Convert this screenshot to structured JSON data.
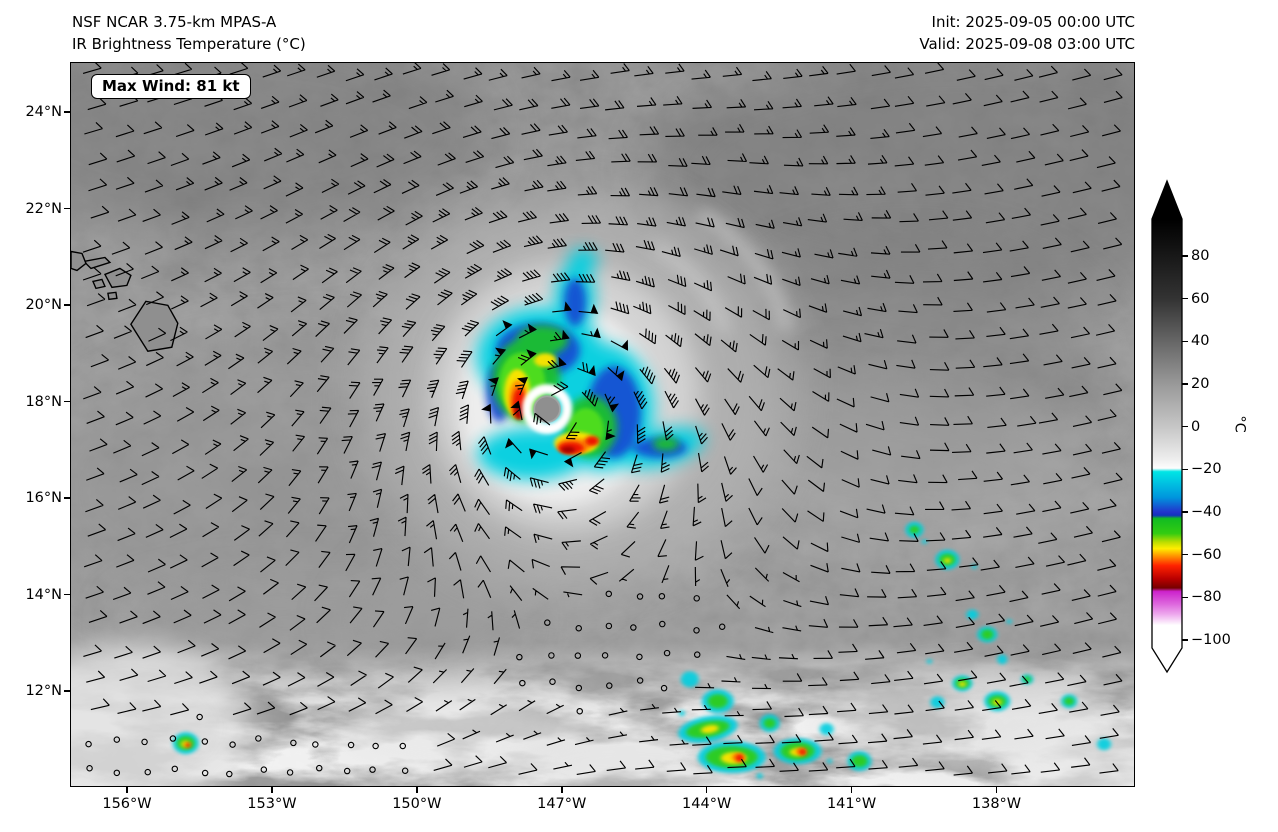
{
  "header": {
    "title_line1": "NSF NCAR 3.75-km MPAS-A",
    "title_line2": "IR Brightness Temperature (°C)",
    "init_label": "Init: 2025-09-05 00:00 UTC",
    "valid_label": "Valid: 2025-09-08 03:00 UTC"
  },
  "map": {
    "max_wind_label": "Max Wind: 81 kt",
    "y_ticks": [
      "24°N",
      "22°N",
      "20°N",
      "18°N",
      "16°N",
      "14°N",
      "12°N"
    ],
    "x_ticks": [
      "156°W",
      "153°W",
      "150°W",
      "147°W",
      "144°W",
      "141°W",
      "138°W"
    ]
  },
  "colorbar": {
    "unit": "°C",
    "ticks": [
      "80",
      "60",
      "40",
      "20",
      "0",
      "−20",
      "−40",
      "−60",
      "−80",
      "−100"
    ],
    "gradient": [
      {
        "at": 0.0,
        "color": "#000000"
      },
      {
        "at": 0.186,
        "color": "#333333"
      },
      {
        "at": 0.285,
        "color": "#666666"
      },
      {
        "at": 0.385,
        "color": "#999999"
      },
      {
        "at": 0.484,
        "color": "#c6c6c6"
      },
      {
        "at": 0.559,
        "color": "#ededed"
      },
      {
        "at": 0.581,
        "color": "#fdfdfd"
      },
      {
        "at": 0.589,
        "color": "#00e5e5"
      },
      {
        "at": 0.649,
        "color": "#0095dd"
      },
      {
        "at": 0.683,
        "color": "#2233cc"
      },
      {
        "at": 0.691,
        "color": "#1133bb"
      },
      {
        "at": 0.698,
        "color": "#11bb22"
      },
      {
        "at": 0.733,
        "color": "#33cc11"
      },
      {
        "at": 0.753,
        "color": "#bbdd00"
      },
      {
        "at": 0.768,
        "color": "#ffee00"
      },
      {
        "at": 0.788,
        "color": "#ff8800"
      },
      {
        "at": 0.808,
        "color": "#ff2200"
      },
      {
        "at": 0.838,
        "color": "#bb0000"
      },
      {
        "at": 0.86,
        "color": "#770000"
      },
      {
        "at": 0.868,
        "color": "#cc22cc"
      },
      {
        "at": 0.897,
        "color": "#dd66dd"
      },
      {
        "at": 0.922,
        "color": "#eeaaee"
      },
      {
        "at": 0.947,
        "color": "#ffffff"
      },
      {
        "at": 1.0,
        "color": "#ffffff"
      }
    ]
  },
  "chart_data": {
    "type": "heatmap",
    "title": "IR Brightness Temperature (°C)",
    "model": "NSF NCAR 3.75-km MPAS-A",
    "init_time": "2025-09-05 00:00 UTC",
    "valid_time": "2025-09-08 03:00 UTC",
    "x_axis": {
      "label": "",
      "tick_labels": [
        "156°W",
        "153°W",
        "150°W",
        "147°W",
        "144°W",
        "141°W",
        "138°W"
      ],
      "approx_range_deg_w": [
        157.2,
        135.1
      ]
    },
    "y_axis": {
      "label": "",
      "tick_labels": [
        "24°N",
        "22°N",
        "20°N",
        "18°N",
        "16°N",
        "14°N",
        "12°N"
      ],
      "approx_range_deg_n": [
        10.0,
        25.0
      ]
    },
    "colorbar": {
      "label": "°C",
      "tick_values": [
        80,
        60,
        40,
        20,
        0,
        -20,
        -40,
        -60,
        -80,
        -100
      ]
    },
    "overlays": [
      "10-m wind barbs (kt)",
      "Hawaiian Islands coastlines"
    ],
    "max_wind_kt": 81,
    "features": [
      {
        "name": "tropical cyclone with clear eye",
        "approx_center": "147.2°W, 17.9°N",
        "coldest_cloud_tops_c": -80
      },
      {
        "name": "Hawaiian Islands",
        "approx_location": "157–154.5°W, 19–21.5°N"
      },
      {
        "name": "scattered ITCZ convection",
        "approx_location": "11–15°N, 145–136.5°W"
      },
      {
        "name": "calm-wind circles",
        "approx_location": "south and southeast of the cyclone and along the bottom-left rows"
      }
    ],
    "grid": false,
    "legend_position": "right colorbar with arrow end caps"
  }
}
